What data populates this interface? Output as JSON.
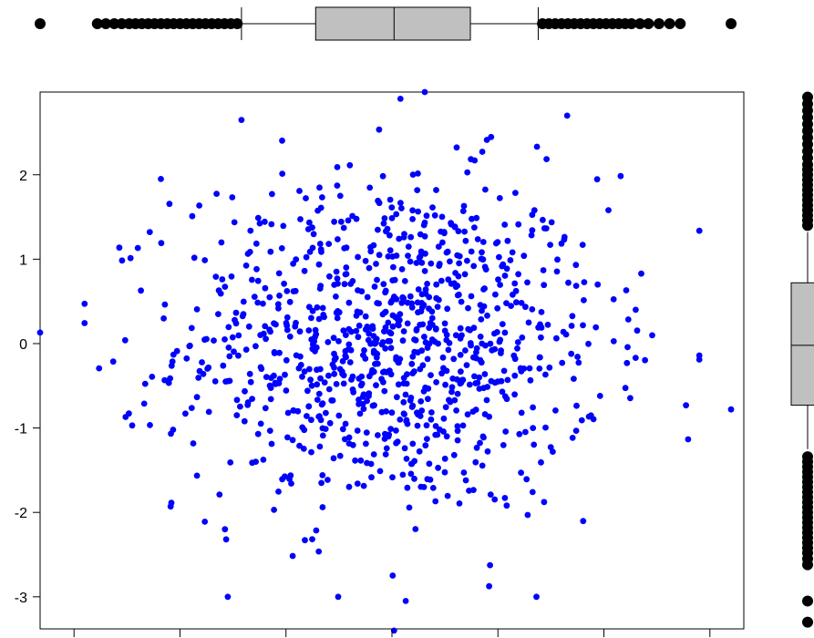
{
  "chart_data": {
    "type": "scatter",
    "title": "",
    "xlabel": "",
    "ylabel": "",
    "xlim": [
      -3.32,
      3.32
    ],
    "ylim": [
      -3.38,
      2.98
    ],
    "xticks": [
      -3,
      -2,
      -1,
      0,
      1,
      2,
      3
    ],
    "yticks": [
      -3,
      -2,
      -1,
      0,
      1,
      2
    ],
    "ytick_labels": [
      "-3",
      "-2",
      "-1",
      "0",
      "1",
      "2"
    ],
    "grid": false,
    "point_color": "#0000ff",
    "marginal_box_color": "#c0c0c0",
    "outlier_color": "#000000",
    "n_points": 1000,
    "x_distribution": {
      "mean": 0.0,
      "sd": 1.0
    },
    "y_distribution": {
      "mean": 0.0,
      "sd": 1.0
    },
    "x_boxplot": {
      "whisker_low": -1.42,
      "q1": -0.72,
      "median": 0.02,
      "q3": 0.74,
      "whisker_high": 1.38,
      "outliers_low": [
        -3.32,
        -2.78,
        -2.7,
        -2.62,
        -2.55,
        -2.48,
        -2.42,
        -2.36,
        -2.3,
        -2.24,
        -2.18,
        -2.12,
        -2.06,
        -2.0,
        -1.94,
        -1.88,
        -1.82,
        -1.76,
        -1.7,
        -1.64,
        -1.58,
        -1.52,
        -1.46
      ],
      "outliers_high": [
        1.42,
        1.48,
        1.54,
        1.6,
        1.66,
        1.72,
        1.78,
        1.84,
        1.9,
        1.96,
        2.02,
        2.08,
        2.14,
        2.2,
        2.26,
        2.34,
        2.42,
        2.52,
        2.62,
        2.72,
        3.2
      ]
    },
    "y_boxplot": {
      "whisker_low": -1.25,
      "q1": -0.73,
      "median": -0.02,
      "q3": 0.72,
      "whisker_high": 1.32,
      "outliers_low": [
        -3.05,
        -3.3,
        -2.62,
        -2.55,
        -2.48,
        -2.42,
        -2.36,
        -2.3,
        -2.24,
        -2.18,
        -2.12,
        -2.06,
        -2.0,
        -1.94,
        -1.88,
        -1.82,
        -1.76,
        -1.7,
        -1.64,
        -1.58,
        -1.52,
        -1.46,
        -1.4,
        -1.34
      ],
      "outliers_high": [
        1.4,
        1.46,
        1.52,
        1.58,
        1.64,
        1.7,
        1.76,
        1.82,
        1.88,
        1.94,
        2.0,
        2.06,
        2.12,
        2.2,
        2.28,
        2.36,
        2.44,
        2.52,
        2.6,
        2.68,
        2.76,
        2.84,
        2.92
      ]
    },
    "notable_points": [
      {
        "x": -3.32,
        "y": 0.13
      },
      {
        "x": 3.2,
        "y": -0.78
      },
      {
        "x": 0.31,
        "y": 2.98
      },
      {
        "x": 0.08,
        "y": 2.9
      },
      {
        "x": 0.13,
        "y": -3.05
      },
      {
        "x": 0.02,
        "y": -3.4
      },
      {
        "x": -1.42,
        "y": 2.65
      },
      {
        "x": 0.78,
        "y": 2.17
      },
      {
        "x": -2.18,
        "y": 1.95
      },
      {
        "x": 2.3,
        "y": 0.4
      }
    ]
  }
}
